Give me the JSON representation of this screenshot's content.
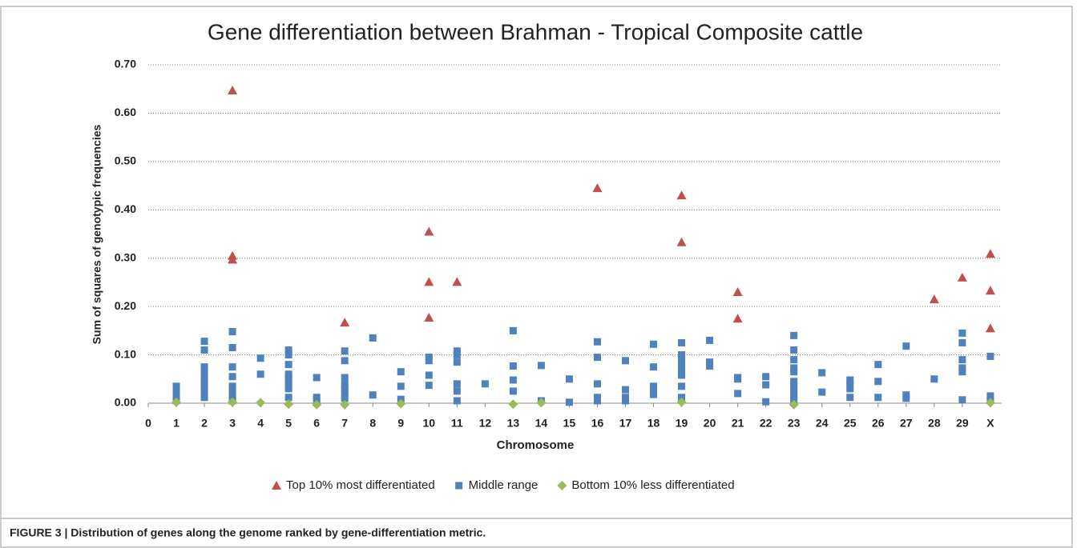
{
  "chart_data": {
    "type": "scatter",
    "title": "Gene differentiation between Brahman - Tropical Composite cattle",
    "xlabel": "Chromosome",
    "ylabel": "Sum of squares of genotypic frequencies",
    "caption": "FIGURE 3 | Distribution of genes along the genome ranked by gene-differentiation metric.",
    "xlim": [
      0,
      30.4
    ],
    "xticks": [
      0,
      1,
      2,
      3,
      4,
      5,
      6,
      7,
      8,
      9,
      10,
      11,
      12,
      13,
      14,
      15,
      16,
      17,
      18,
      19,
      20,
      21,
      22,
      23,
      24,
      25,
      26,
      27,
      28,
      29,
      {
        "value": 30,
        "label": "X"
      }
    ],
    "ylim": [
      0,
      0.7
    ],
    "yticks": [
      {
        "value": 0,
        "label": "0.00"
      },
      {
        "value": 0.1,
        "label": "0.10"
      },
      {
        "value": 0.2,
        "label": "0.20"
      },
      {
        "value": 0.3,
        "label": "0.30"
      },
      {
        "value": 0.4,
        "label": "0.40"
      },
      {
        "value": 0.5,
        "label": "0.50"
      },
      {
        "value": 0.6,
        "label": "0.60"
      },
      {
        "value": 0.7,
        "label": "0.70"
      }
    ],
    "grid": true,
    "legend": "bottom",
    "series": [
      {
        "name": "Top 10% most differentiated",
        "color": "#c0504d",
        "marker": "triangle",
        "x": [
          3,
          3,
          3,
          7,
          10,
          10,
          10,
          11,
          16,
          19,
          19,
          21,
          21,
          28,
          29,
          30,
          30,
          30
        ],
        "values": [
          0.647,
          0.305,
          0.297,
          0.167,
          0.355,
          0.251,
          0.177,
          0.251,
          0.445,
          0.43,
          0.333,
          0.23,
          0.175,
          0.215,
          0.26,
          0.309,
          0.233,
          0.155
        ]
      },
      {
        "name": "Middle range",
        "color": "#4f81bd",
        "marker": "square",
        "x": [
          1,
          1,
          1,
          1,
          2,
          2,
          2,
          2,
          2,
          2,
          2,
          2,
          2,
          3,
          3,
          3,
          3,
          3,
          3,
          3,
          3,
          4,
          4,
          5,
          5,
          5,
          5,
          5,
          5,
          5,
          5,
          6,
          6,
          6,
          7,
          7,
          7,
          7,
          7,
          7,
          7,
          8,
          8,
          9,
          9,
          9,
          10,
          10,
          10,
          10,
          11,
          11,
          11,
          11,
          11,
          11,
          12,
          13,
          13,
          13,
          13,
          14,
          14,
          15,
          15,
          16,
          16,
          16,
          16,
          16,
          17,
          17,
          17,
          17,
          18,
          18,
          18,
          18,
          18,
          19,
          19,
          19,
          19,
          19,
          19,
          19,
          19,
          20,
          20,
          20,
          21,
          21,
          21,
          22,
          22,
          22,
          23,
          23,
          23,
          23,
          23,
          23,
          23,
          23,
          23,
          23,
          24,
          24,
          25,
          25,
          25,
          25,
          26,
          26,
          26,
          27,
          27,
          27,
          28,
          29,
          29,
          29,
          29,
          29,
          29,
          30,
          30,
          30
        ],
        "values": [
          0.035,
          0.025,
          0.015,
          0.005,
          0.128,
          0.11,
          0.075,
          0.065,
          0.055,
          0.045,
          0.035,
          0.025,
          0.012,
          0.148,
          0.115,
          0.075,
          0.055,
          0.035,
          0.025,
          0.015,
          0.005,
          0.093,
          0.06,
          0.11,
          0.1,
          0.08,
          0.06,
          0.05,
          0.04,
          0.03,
          0.012,
          0.053,
          0.012,
          0.005,
          0.108,
          0.088,
          0.053,
          0.038,
          0.03,
          0.02,
          0.01,
          0.135,
          0.017,
          0.065,
          0.035,
          0.008,
          0.095,
          0.088,
          0.058,
          0.037,
          0.108,
          0.1,
          0.085,
          0.04,
          0.025,
          0.005,
          0.04,
          0.15,
          0.077,
          0.048,
          0.025,
          0.078,
          0.005,
          0.05,
          0.002,
          0.127,
          0.095,
          0.04,
          0.012,
          0.005,
          0.088,
          0.028,
          0.012,
          0.005,
          0.122,
          0.075,
          0.035,
          0.022,
          0.018,
          0.125,
          0.1,
          0.092,
          0.08,
          0.068,
          0.058,
          0.035,
          0.012,
          0.13,
          0.085,
          0.077,
          0.053,
          0.05,
          0.02,
          0.055,
          0.038,
          0.003,
          0.14,
          0.11,
          0.09,
          0.073,
          0.065,
          0.045,
          0.035,
          0.025,
          0.015,
          0.008,
          0.063,
          0.023,
          0.048,
          0.04,
          0.03,
          0.012,
          0.08,
          0.045,
          0.012,
          0.118,
          0.017,
          0.01,
          0.05,
          0.145,
          0.125,
          0.09,
          0.073,
          0.065,
          0.007,
          0.097,
          0.015,
          0.005
        ]
      },
      {
        "name": "Bottom 10% less differentiated",
        "color": "#9bbb59",
        "marker": "diamond",
        "x": [
          1,
          3,
          4,
          5,
          6,
          7,
          9,
          13,
          14,
          19,
          23,
          30
        ],
        "values": [
          0.002,
          0.002,
          0.001,
          -0.002,
          -0.003,
          -0.003,
          -0.001,
          -0.002,
          0.001,
          0.002,
          -0.003,
          0.001
        ]
      }
    ]
  }
}
